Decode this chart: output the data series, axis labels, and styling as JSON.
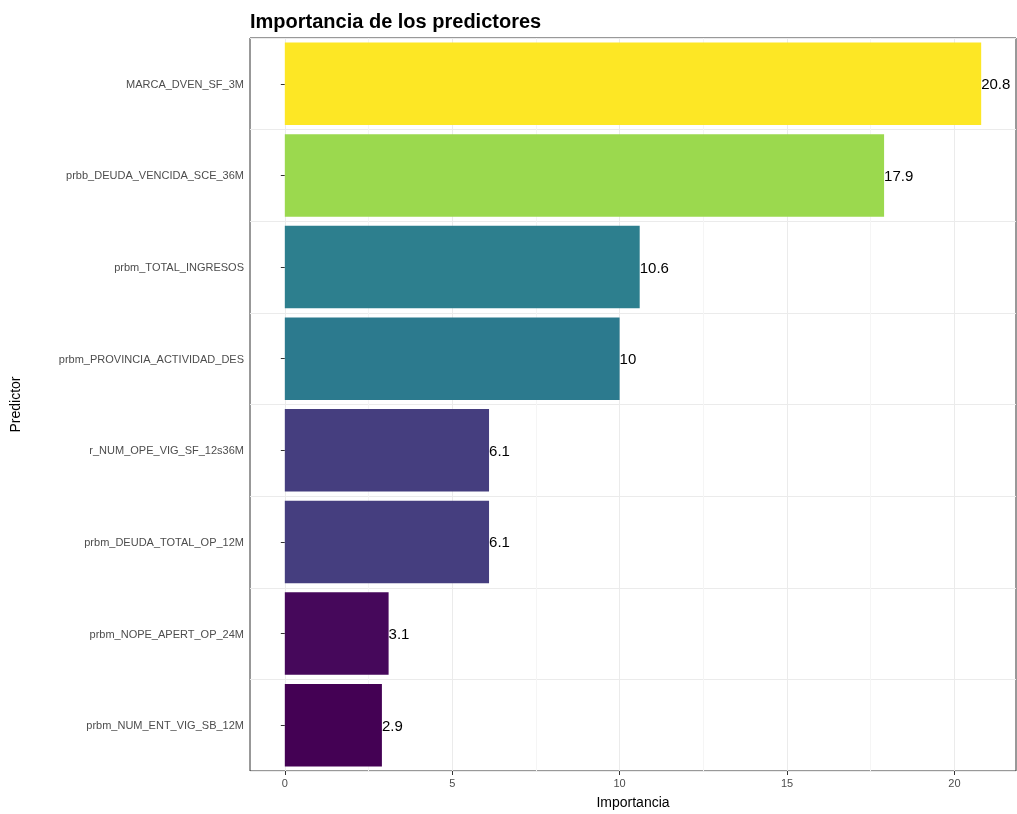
{
  "chart_data": {
    "type": "bar",
    "orientation": "horizontal",
    "title": "Importancia de los predictores",
    "xlabel": "Importancia",
    "ylabel": "Predictor",
    "categories": [
      "MARCA_DVEN_SF_3M",
      "prbb_DEUDA_VENCIDA_SCE_36M",
      "prbm_TOTAL_INGRESOS",
      "prbm_PROVINCIA_ACTIVIDAD_DES",
      "r_NUM_OPE_VIG_SF_12s36M",
      "prbm_DEUDA_TOTAL_OP_12M",
      "prbm_NOPE_APERT_OP_24M",
      "prbm_NUM_ENT_VIG_SB_12M"
    ],
    "values": [
      20.8,
      17.9,
      10.6,
      10,
      6.1,
      6.1,
      3.1,
      2.9
    ],
    "colors": [
      "#fde725",
      "#9bd94e",
      "#2d7f8e",
      "#2c7a8e",
      "#453e7f",
      "#453e7f",
      "#46085b",
      "#440154"
    ],
    "xlim": [
      -1.04,
      21.84
    ],
    "xticks": [
      0,
      5,
      10,
      15,
      20
    ],
    "grid": true,
    "data_labels": true
  }
}
